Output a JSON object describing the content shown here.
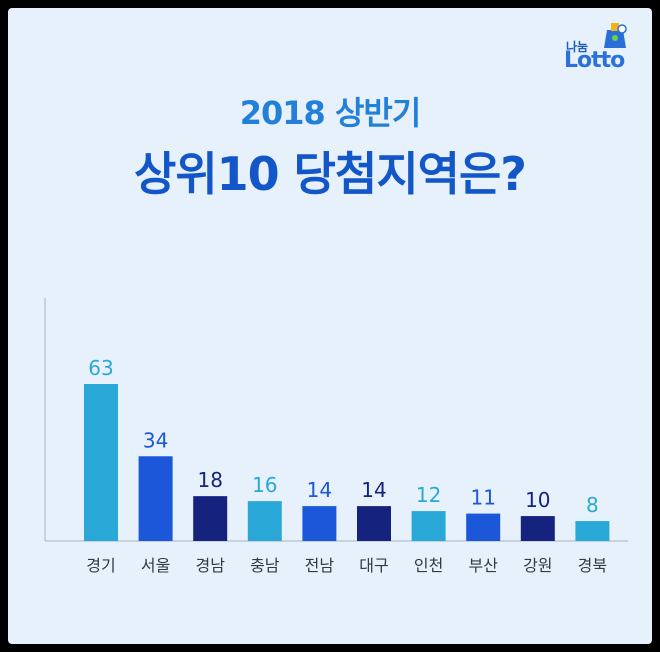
{
  "logo": {
    "top": "나눔",
    "bottom": "Lotto"
  },
  "chart_data": {
    "type": "bar",
    "subtitle": "2018 상반기",
    "title": "상위10 당첨지역은?",
    "categories": [
      "경기",
      "서울",
      "경남",
      "충남",
      "전남",
      "대구",
      "인천",
      "부산",
      "강원",
      "경북"
    ],
    "values": [
      63,
      34,
      18,
      16,
      14,
      14,
      12,
      11,
      10,
      8
    ],
    "labels": [
      "63",
      "34",
      "18",
      "16",
      "14",
      "14",
      "12",
      "11",
      "10",
      "8"
    ],
    "colors": [
      "#29a8d8",
      "#1b57d8",
      "#16237e",
      "#29a8d8",
      "#1b57d8",
      "#16237e",
      "#29a8d8",
      "#1b57d8",
      "#16237e",
      "#29a8d8"
    ],
    "ylim": [
      0,
      63
    ]
  }
}
